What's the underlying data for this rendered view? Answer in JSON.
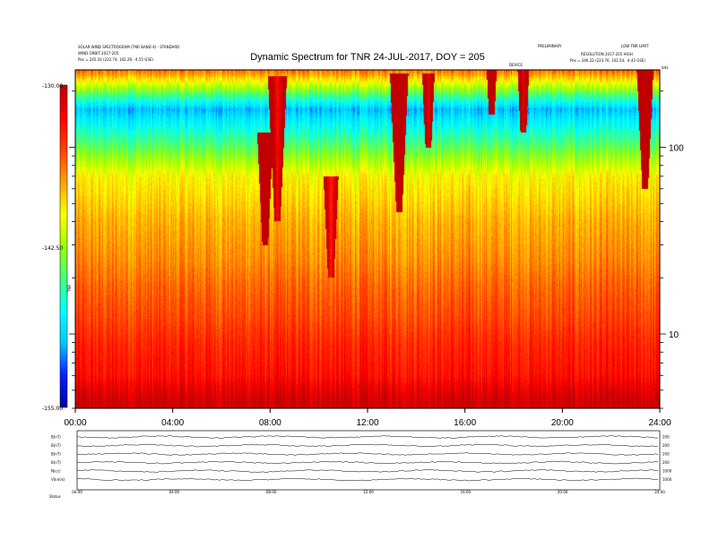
{
  "chart_data": {
    "type": "heatmap",
    "title": "Dynamic Spectrum for TNR 24-JUL-2017, DOY = 205",
    "header_left": [
      "SOLAR WIND SPECTROGRAM (TNR BAND A) - STANDARD",
      "WIND ORBIT 2017-205",
      "Pos =  245.16 (222.74, 102.29, -4.55 GSE)"
    ],
    "header_right": [
      "PRELIMINARY",
      "LOW TNR LIMIT",
      "RESOLUTION 2017-205 HIGH",
      "Pos =  246.22 (223.76, 102.54, -4.43 GSE)"
    ],
    "marker_label": "DEVICE",
    "corner_label": "kHz",
    "x": {
      "range_hours": [
        0,
        24
      ],
      "ticks": [
        "00:00",
        "04:00",
        "08:00",
        "12:00",
        "16:00",
        "20:00",
        "24:00"
      ]
    },
    "y": {
      "scale": "log",
      "unit": "kHz",
      "range": [
        4,
        260
      ],
      "ticks": [
        "100",
        "10"
      ]
    },
    "colorbar": {
      "unit": "dB",
      "label": "TNR",
      "range": [
        -155,
        -130
      ],
      "ticks": [
        "-130.00",
        "-142.50",
        "-155.00"
      ],
      "colors": [
        "#0000a0",
        "#0020ff",
        "#00c8ff",
        "#00ffff",
        "#40ff80",
        "#a0ff00",
        "#ffff00",
        "#ffa000",
        "#ff4000",
        "#ff0000",
        "#c00000"
      ]
    },
    "background_profile": [
      {
        "f": 260,
        "db": -136
      },
      {
        "f": 160,
        "db": -150
      },
      {
        "f": 70,
        "db": -140
      },
      {
        "f": 40,
        "db": -138
      },
      {
        "f": 25,
        "db": -137
      },
      {
        "f": 18,
        "db": -136
      },
      {
        "f": 12,
        "db": -135
      },
      {
        "f": 9,
        "db": -134
      },
      {
        "f": 6,
        "db": -133
      },
      {
        "f": 5,
        "db": -131.5
      },
      {
        "f": 4,
        "db": -130
      }
    ],
    "bursts": [
      {
        "t": 7.8,
        "f_low": 30,
        "f_high": 120,
        "db": -130
      },
      {
        "t": 8.3,
        "f_low": 40,
        "f_high": 240,
        "db": -133
      },
      {
        "t": 10.5,
        "f_low": 20,
        "f_high": 70,
        "db": -134
      },
      {
        "t": 13.3,
        "f_low": 45,
        "f_high": 250,
        "db": -130
      },
      {
        "t": 14.5,
        "f_low": 100,
        "f_high": 250,
        "db": -132
      },
      {
        "t": 17.1,
        "f_low": 150,
        "f_high": 260,
        "db": -130
      },
      {
        "t": 18.4,
        "f_low": 120,
        "f_high": 260,
        "db": -132
      },
      {
        "t": 23.4,
        "f_low": 60,
        "f_high": 260,
        "db": -130
      }
    ],
    "bottom_panel": {
      "rows": [
        {
          "name": "B(nT)",
          "right_tick": "200"
        },
        {
          "name": "B(nT)",
          "right_tick": "200"
        },
        {
          "name": "B(nT)",
          "right_tick": "200"
        },
        {
          "name": "B(nT)",
          "right_tick": "200"
        },
        {
          "name": "N(cc)",
          "right_tick": "1000"
        },
        {
          "name": "V(km/s)",
          "right_tick": "1000"
        }
      ],
      "axis_labels": [
        "00:00",
        "04:00",
        "08:00",
        "12:00",
        "16:00",
        "20:00",
        "24:00"
      ],
      "footer": "Status"
    }
  }
}
